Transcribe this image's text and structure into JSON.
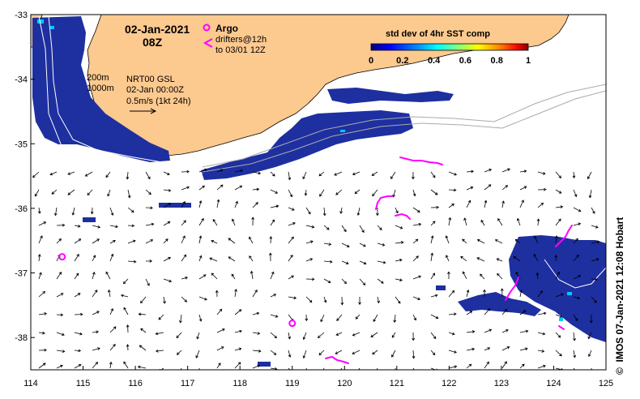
{
  "map": {
    "date": "02-Jan-2021",
    "time": "08Z",
    "legend": {
      "argo_label": "Argo",
      "drifters_label": "drifters@12h",
      "drifters_label2": "to 03/01 12Z",
      "argo_color": "#ff00ff",
      "drifter_color": "#ff00ff"
    },
    "contours": {
      "shallow": "200m",
      "deep": "1000m"
    },
    "currents": {
      "product": "NRT00 GSL",
      "date": "02-Jan 00:00Z",
      "scale": "0.5m/s (1kt 24h)"
    },
    "colorbar": {
      "title": "std dev of 4hr SST comp",
      "ticks": [
        "0",
        "0.2",
        "0.4",
        "0.6",
        "0.8",
        "1"
      ],
      "colors": [
        "#000080",
        "#0000ff",
        "#0080ff",
        "#00ffff",
        "#80ff80",
        "#ffff00",
        "#ff8000",
        "#ff0000",
        "#800000"
      ]
    },
    "land_color": "#fcc98f",
    "sst_color": "#1e2fa0",
    "credit": "IMOS 07-Jan-2021 12:08 Hobart",
    "copyright": "©"
  },
  "chart_data": {
    "type": "map",
    "xlim": [
      114,
      125
    ],
    "ylim": [
      -38.5,
      -33
    ],
    "x_ticks": [
      "114",
      "115",
      "116",
      "117",
      "118",
      "119",
      "120",
      "121",
      "122",
      "123",
      "124",
      "125"
    ],
    "y_ticks": [
      "-33",
      "-34",
      "-35",
      "-36",
      "-37",
      "-38"
    ],
    "argo_floats": [
      [
        114.6,
        -36.75
      ],
      [
        119.0,
        -37.78
      ]
    ]
  }
}
